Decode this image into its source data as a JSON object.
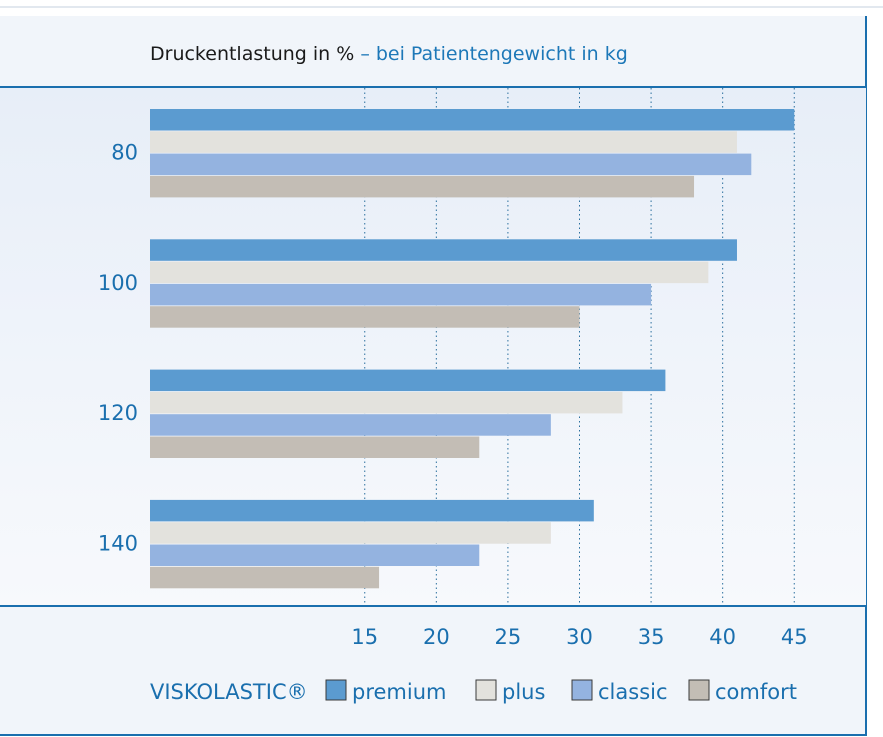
{
  "chart_data": {
    "type": "bar",
    "orientation": "horizontal",
    "title": "Druckentlastung in %",
    "subtitle": "– bei Patientengewicht in kg",
    "categories": [
      "80",
      "100",
      "120",
      "140"
    ],
    "series": [
      {
        "name": "premium",
        "values": [
          45,
          41,
          36,
          31
        ]
      },
      {
        "name": "plus",
        "values": [
          41,
          39,
          33,
          28
        ]
      },
      {
        "name": "classic",
        "values": [
          42,
          35,
          28,
          23
        ]
      },
      {
        "name": "comfort",
        "values": [
          38,
          30,
          23,
          16
        ]
      }
    ],
    "xticks": [
      "15",
      "20",
      "25",
      "30",
      "35",
      "40",
      "45"
    ],
    "xlim": [
      0,
      45
    ],
    "grid": "vertical dotted",
    "legend_brand": "VISKOLASTIC®",
    "legend_position": "bottom"
  },
  "colors": {
    "premium": "#5b9bd0",
    "plus": "#e3e2dd",
    "classic": "#94b3e0",
    "comfort": "#c3bdb5",
    "accent": "#1a6fae",
    "panel_top": "#e7eef8",
    "panel_bottom": "#f7f9fc"
  }
}
